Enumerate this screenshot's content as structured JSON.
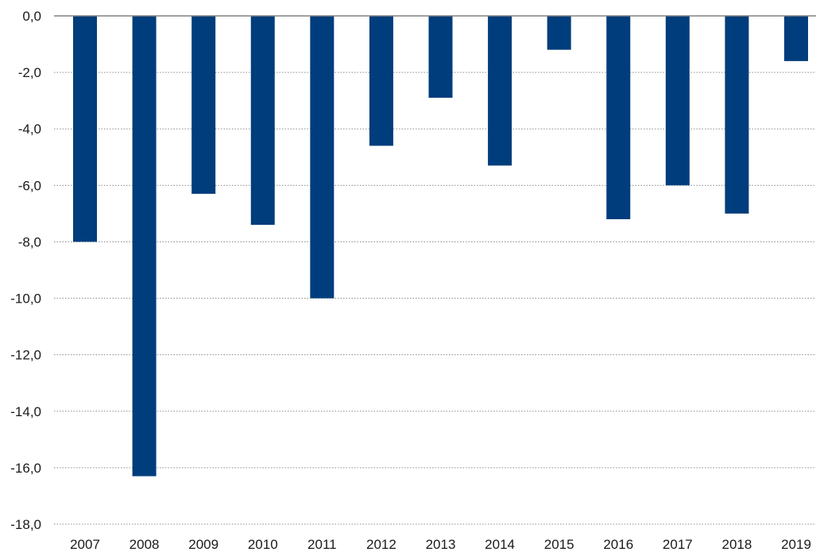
{
  "chart_data": {
    "type": "bar",
    "categories": [
      "2007",
      "2008",
      "2009",
      "2010",
      "2011",
      "2012",
      "2013",
      "2014",
      "2015",
      "2016",
      "2017",
      "2018",
      "2019"
    ],
    "values": [
      -8.0,
      -16.3,
      -6.3,
      -7.4,
      -10.0,
      -4.6,
      -2.9,
      -5.3,
      -1.2,
      -7.2,
      -6.0,
      -7.0,
      -1.6
    ],
    "y_ticks": [
      "0,0",
      "-2,0",
      "-4,0",
      "-6,0",
      "-8,0",
      "-10,0",
      "-12,0",
      "-14,0",
      "-16,0",
      "-18,0"
    ],
    "y_tick_values": [
      0,
      -2,
      -4,
      -6,
      -8,
      -10,
      -12,
      -14,
      -16,
      -18
    ],
    "ylim": [
      -18,
      0
    ],
    "grid": true,
    "legend": "none",
    "bar_color": "#003d7c",
    "title": "",
    "xlabel": "",
    "ylabel": ""
  }
}
